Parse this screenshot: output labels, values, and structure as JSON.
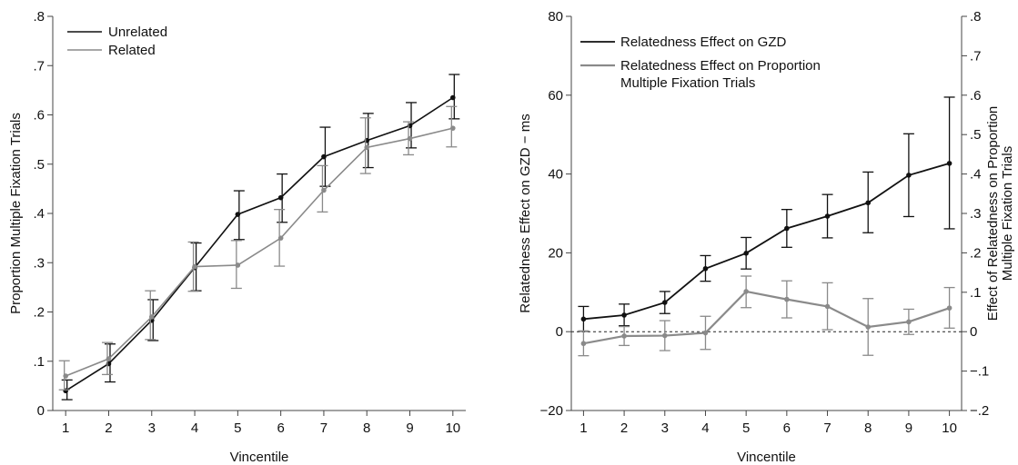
{
  "chart_data": [
    {
      "type": "line",
      "x": [
        1,
        2,
        3,
        4,
        5,
        6,
        7,
        8,
        9,
        10
      ],
      "xlabel": "Vincentile",
      "ylabel": "Proportion Multiple Fixation Trials",
      "xticks": [
        "1",
        "2",
        "3",
        "4",
        "5",
        "6",
        "7",
        "8",
        "9",
        "10"
      ],
      "yticks": [
        "0",
        ".1",
        ".2",
        ".3",
        ".4",
        ".5",
        ".6",
        ".7",
        ".8"
      ],
      "xlim": [
        0.7,
        10.3
      ],
      "ylim": [
        0,
        0.8
      ],
      "grid": false,
      "legend": "top-left",
      "series": [
        {
          "name": "Unrelated",
          "color": "#111111",
          "values": [
            0.04,
            0.095,
            0.183,
            0.29,
            0.398,
            0.432,
            0.515,
            0.548,
            0.578,
            0.635
          ],
          "err_low": [
            0.022,
            0.058,
            0.142,
            0.243,
            0.347,
            0.382,
            0.455,
            0.493,
            0.533,
            0.592
          ],
          "err_high": [
            0.062,
            0.135,
            0.225,
            0.34,
            0.446,
            0.48,
            0.575,
            0.603,
            0.625,
            0.682
          ]
        },
        {
          "name": "Related",
          "color": "#8a8a8a",
          "values": [
            0.07,
            0.105,
            0.19,
            0.292,
            0.295,
            0.35,
            0.447,
            0.534,
            0.552,
            0.573
          ],
          "err_low": [
            0.042,
            0.073,
            0.144,
            0.242,
            0.248,
            0.293,
            0.403,
            0.481,
            0.519,
            0.535
          ],
          "err_high": [
            0.101,
            0.138,
            0.243,
            0.342,
            0.345,
            0.408,
            0.497,
            0.594,
            0.586,
            0.617
          ]
        }
      ]
    },
    {
      "type": "line",
      "x": [
        1,
        2,
        3,
        4,
        5,
        6,
        7,
        8,
        9,
        10
      ],
      "xlabel": "Vincentile",
      "ylabel": "Relatedness Effect on GZD − ms",
      "y2label_lines": [
        "Effect of Relatedness on Proportion",
        "Multiple Fixation Trials"
      ],
      "xticks": [
        "1",
        "2",
        "3",
        "4",
        "5",
        "6",
        "7",
        "8",
        "9",
        "10"
      ],
      "yticks": [
        "−20",
        "0",
        "20",
        "40",
        "60",
        "80"
      ],
      "y2ticks": [
        "−.2",
        "−.1",
        "0",
        ".1",
        ".2",
        ".3",
        ".4",
        ".5",
        ".6",
        ".7",
        ".8"
      ],
      "xlim": [
        0.7,
        10.3
      ],
      "ylim": [
        -20,
        80
      ],
      "y2lim": [
        -0.2,
        0.8
      ],
      "grid": false,
      "legend": "top-left",
      "zero_line": "dashed",
      "series": [
        {
          "name": "Relatedness Effect on GZD",
          "color": "#111111",
          "axis": "left",
          "values": [
            3.2,
            4.2,
            7.4,
            16.0,
            19.9,
            26.2,
            29.3,
            32.7,
            39.7,
            42.7
          ],
          "err_low": [
            0.1,
            1.5,
            4.6,
            12.8,
            15.9,
            21.4,
            23.8,
            25.1,
            29.2,
            26.1
          ],
          "err_high": [
            6.4,
            7.0,
            10.2,
            19.3,
            23.9,
            31.0,
            34.8,
            40.5,
            50.2,
            59.5
          ]
        },
        {
          "name": "Relatedness Effect on Proportion Multiple Fixation Trials",
          "name_lines": [
            "Relatedness Effect on Proportion",
            "Multiple Fixation Trials"
          ],
          "color": "#8a8a8a",
          "axis": "right",
          "values": [
            -0.03,
            -0.011,
            -0.01,
            -0.003,
            0.102,
            0.082,
            0.064,
            0.012,
            0.025,
            0.06
          ],
          "err_low": [
            -0.061,
            -0.035,
            -0.048,
            -0.045,
            0.061,
            0.035,
            0.005,
            -0.06,
            -0.007,
            0.009
          ],
          "err_high": [
            0.002,
            0.013,
            0.028,
            0.039,
            0.141,
            0.129,
            0.124,
            0.084,
            0.057,
            0.112
          ]
        }
      ]
    }
  ]
}
